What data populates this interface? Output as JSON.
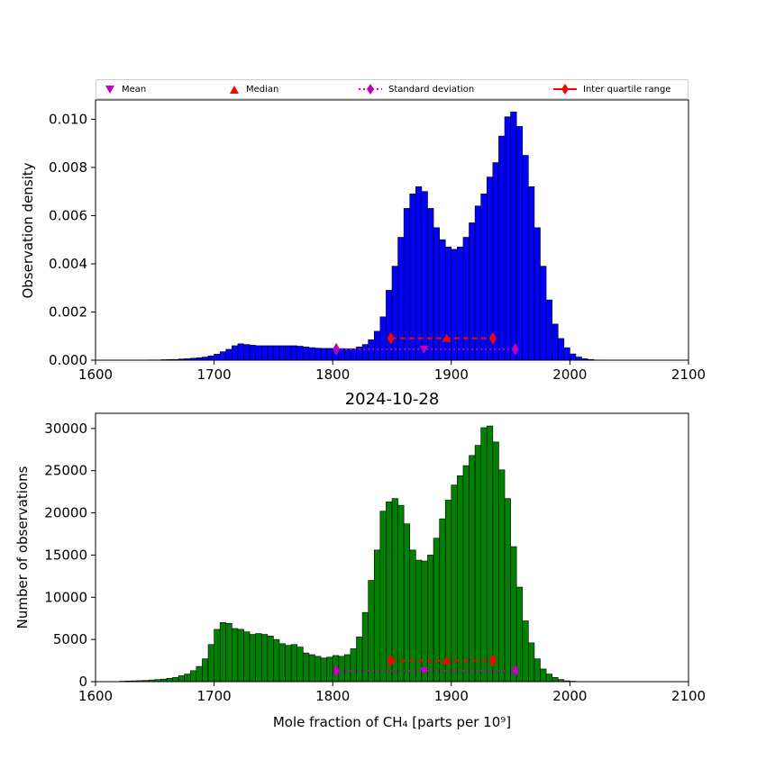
{
  "legend": {
    "mean": "Mean",
    "median": "Median",
    "std": "Standard deviation",
    "iqr": "Inter quartile range"
  },
  "colors": {
    "top_bars": "#0000ff",
    "bottom_bars": "#008000",
    "mean": "#bf00bf",
    "median": "#ff0000"
  },
  "chart_data": [
    {
      "type": "bar",
      "title": "",
      "xlabel": "",
      "ylabel": "Observation density",
      "xlim": [
        1600,
        2100
      ],
      "ylim": [
        0,
        0.0108
      ],
      "bin_start": 1600,
      "bin_width": 5,
      "x_ticks": [
        "1600",
        "1700",
        "1800",
        "1900",
        "2000",
        "2100"
      ],
      "y_ticks": [
        "0.000",
        "0.002",
        "0.004",
        "0.006",
        "0.008",
        "0.010"
      ],
      "y_tick_values": [
        0,
        0.002,
        0.004,
        0.006,
        0.008,
        0.01
      ],
      "values": [
        0,
        0,
        0,
        0,
        0,
        0,
        0,
        0,
        0,
        1e-05,
        1e-05,
        2e-05,
        3e-05,
        3e-05,
        5e-05,
        6e-05,
        8e-05,
        0.0001,
        0.00013,
        0.00018,
        0.00025,
        0.00035,
        0.00045,
        0.0006,
        0.00068,
        0.00065,
        0.00062,
        0.0006,
        0.0006,
        0.0006,
        0.0006,
        0.0006,
        0.0006,
        0.0006,
        0.00058,
        0.00055,
        0.00052,
        0.0005,
        0.00049,
        0.00049,
        0.00048,
        0.00048,
        0.00047,
        0.00047,
        0.00055,
        0.00065,
        0.00085,
        0.0012,
        0.0018,
        0.0029,
        0.0039,
        0.0051,
        0.0063,
        0.0069,
        0.0072,
        0.007,
        0.0063,
        0.0055,
        0.005,
        0.0047,
        0.0046,
        0.0047,
        0.0051,
        0.0057,
        0.0064,
        0.0069,
        0.0076,
        0.0082,
        0.0093,
        0.0101,
        0.0103,
        0.0097,
        0.0085,
        0.0072,
        0.0055,
        0.0039,
        0.0025,
        0.0015,
        0.0009,
        0.00052,
        0.00026,
        0.00013,
        6e-05,
        3e-05,
        1e-05,
        0,
        0,
        0,
        0,
        0,
        0,
        0,
        0,
        0,
        0,
        0,
        0,
        0,
        0,
        0
      ],
      "stats": {
        "mean": 1877,
        "median": 1896,
        "std_low": 1803,
        "std_high": 1954,
        "iqr_low": 1849,
        "iqr_high": 1935,
        "mean_y": 0.00046,
        "iqr_y": 0.00091,
        "std_y": 0.00046
      }
    },
    {
      "type": "bar",
      "title": "2024-10-28",
      "xlabel": "Mole fraction of CH₄ [parts per 10⁹]",
      "ylabel": "Number of observations",
      "xlim": [
        1600,
        2100
      ],
      "ylim": [
        0,
        31800
      ],
      "bin_start": 1600,
      "bin_width": 5,
      "x_ticks": [
        "1600",
        "1700",
        "1800",
        "1900",
        "2000",
        "2100"
      ],
      "y_ticks": [
        "0",
        "5000",
        "10000",
        "15000",
        "20000",
        "25000",
        "30000"
      ],
      "y_tick_values": [
        0,
        5000,
        10000,
        15000,
        20000,
        25000,
        30000
      ],
      "values": [
        0,
        0,
        0,
        0,
        50,
        80,
        100,
        120,
        150,
        200,
        250,
        300,
        400,
        500,
        700,
        900,
        1300,
        1800,
        2700,
        4400,
        6200,
        7000,
        6900,
        6300,
        6200,
        5900,
        5600,
        5700,
        5600,
        5400,
        5000,
        4500,
        4300,
        4400,
        4100,
        3400,
        3200,
        3000,
        2800,
        2900,
        3100,
        3000,
        3200,
        3900,
        5300,
        8200,
        12000,
        15600,
        20200,
        21300,
        21700,
        20900,
        18700,
        15600,
        14400,
        14300,
        15000,
        17000,
        19300,
        21500,
        23300,
        24400,
        25600,
        26800,
        28000,
        30100,
        30300,
        28400,
        25100,
        21700,
        16000,
        11200,
        7200,
        4600,
        2700,
        1500,
        900,
        500,
        250,
        100,
        50,
        0,
        0,
        0,
        0,
        0,
        0,
        0,
        0,
        0,
        0,
        0,
        0,
        0,
        0,
        0,
        0,
        0,
        0,
        0
      ],
      "stats": {
        "mean": 1877,
        "median": 1896,
        "std_low": 1803,
        "std_high": 1954,
        "iqr_low": 1849,
        "iqr_high": 1935,
        "mean_y": 1300,
        "iqr_y": 2500,
        "std_y": 1300
      }
    }
  ]
}
